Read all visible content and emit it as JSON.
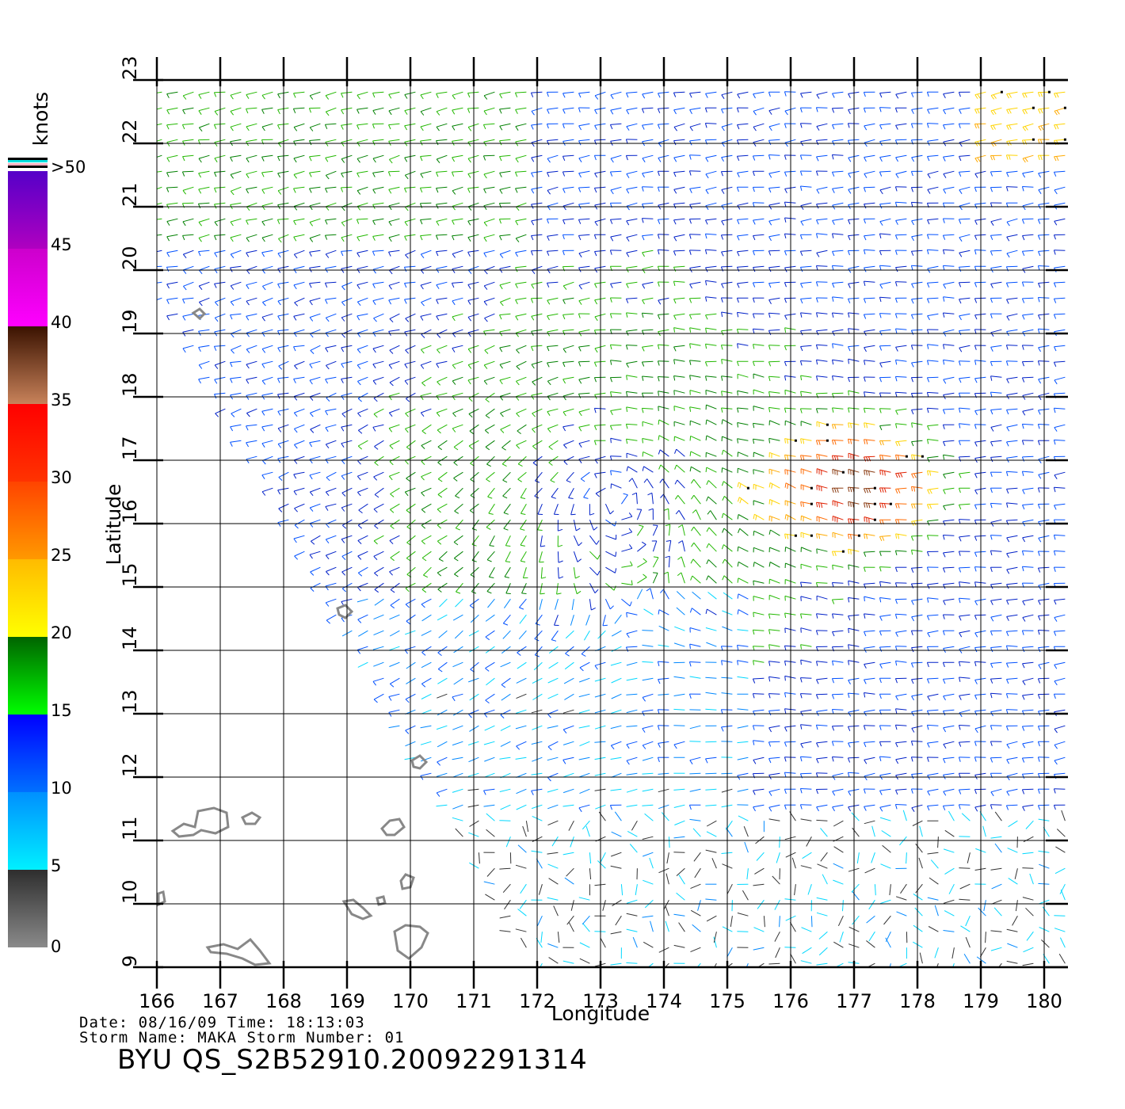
{
  "chart_data": {
    "type": "map",
    "xlabel": "Longitude",
    "ylabel": "Latitude",
    "x_ticks": [
      166,
      167,
      168,
      169,
      170,
      171,
      172,
      173,
      174,
      175,
      176,
      177,
      178,
      179,
      180
    ],
    "y_ticks": [
      9,
      10,
      11,
      12,
      13,
      14,
      15,
      16,
      17,
      18,
      19,
      20,
      21,
      22,
      23
    ],
    "xlim": [
      166,
      180
    ],
    "ylim": [
      9,
      23
    ],
    "grid": true,
    "colorbar": {
      "unit": "knots",
      "tick_labels": [
        "0",
        "5",
        "10",
        "15",
        "20",
        "25",
        "30",
        "35",
        "40",
        "45",
        ">50"
      ],
      "bands": [
        {
          "from": 0,
          "to": 5,
          "colors": [
            "#8a8a8a",
            "#2e2e2e"
          ]
        },
        {
          "from": 5,
          "to": 10,
          "colors": [
            "#00f0ff",
            "#0090ff"
          ]
        },
        {
          "from": 10,
          "to": 15,
          "colors": [
            "#0070ff",
            "#0000ff"
          ]
        },
        {
          "from": 15,
          "to": 20,
          "colors": [
            "#00ff00",
            "#006400"
          ]
        },
        {
          "from": 20,
          "to": 25,
          "colors": [
            "#ffff00",
            "#ffbb00"
          ]
        },
        {
          "from": 25,
          "to": 30,
          "colors": [
            "#ff9900",
            "#ff4400"
          ]
        },
        {
          "from": 30,
          "to": 35,
          "colors": [
            "#ff3300",
            "#ff0000"
          ]
        },
        {
          "from": 35,
          "to": 40,
          "colors": [
            "#c8825a",
            "#3a1200"
          ]
        },
        {
          "from": 40,
          "to": 45,
          "colors": [
            "#ff00ff",
            "#cc00cc"
          ]
        },
        {
          "from": 45,
          "to": 50,
          "colors": [
            "#b000c0",
            "#5500c8"
          ]
        }
      ]
    },
    "storm_center": {
      "lon": 173.2,
      "lat": 16.4
    },
    "strong_wind_center": {
      "lon": 177.2,
      "lat": 16.6
    }
  },
  "info": {
    "date_line": "Date: 08/16/09   Time: 18:13:03",
    "storm_line": "Storm  Name:  MAKA    Storm  Number:  01",
    "identifier": "BYU  QS_S2B52910.20092291314"
  }
}
